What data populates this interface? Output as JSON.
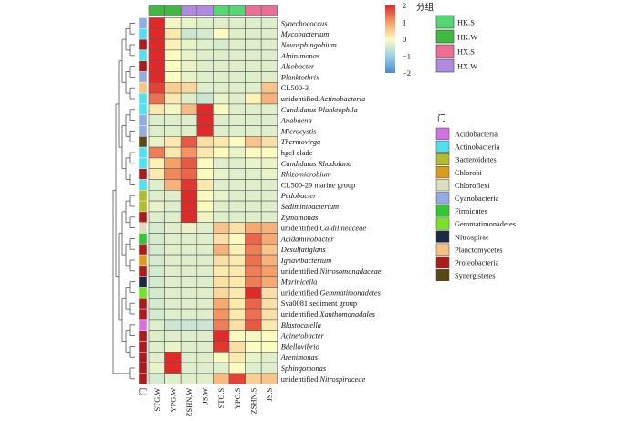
{
  "chart_data": {
    "type": "heatmap",
    "title": "",
    "columns": [
      "STG.W",
      "YPG.W",
      "ZSHN.W",
      "JS.W",
      "STG.S",
      "YPG.S",
      "ZSHN.S",
      "JS.S"
    ],
    "column_groups": [
      "HK.W",
      "HK.W",
      "HX.W",
      "HX.W",
      "HK.S",
      "HK.S",
      "HX.S",
      "HX.S"
    ],
    "group_legend": {
      "title": "分组",
      "items": [
        {
          "name": "HK.S",
          "color": "#53d873"
        },
        {
          "name": "HK.W",
          "color": "#3fba3f"
        },
        {
          "name": "HX.S",
          "color": "#ee6d95"
        },
        {
          "name": "HX.W",
          "color": "#b08ae2"
        }
      ]
    },
    "phylum_legend": {
      "title": "门",
      "items": [
        {
          "name": "Acidobacteria",
          "color": "#d072e3"
        },
        {
          "name": "Actinobacteria",
          "color": "#52e0ee"
        },
        {
          "name": "Bacteroidetes",
          "color": "#b1bd2a"
        },
        {
          "name": "Chlorobi",
          "color": "#db9c1b"
        },
        {
          "name": "Chloroflexi",
          "color": "#ddddbf"
        },
        {
          "name": "Cyanobacteria",
          "color": "#94abe3"
        },
        {
          "name": "Firmicutes",
          "color": "#33c733"
        },
        {
          "name": "Gemmatimonadetes",
          "color": "#77e326"
        },
        {
          "name": "Nitrospirae",
          "color": "#1c2944"
        },
        {
          "name": "Planctomycetes",
          "color": "#f6c280"
        },
        {
          "name": "Proteobacteria",
          "color": "#a81c1c"
        },
        {
          "name": "Synergistetes",
          "color": "#5a4712"
        }
      ]
    },
    "phylum_axis_label": "门",
    "color_scale": {
      "min": -2,
      "max": 2,
      "ticks": [
        2,
        1,
        0,
        -1,
        -2
      ],
      "colors": [
        "#4d8ad1",
        "#9ad2e8",
        "#fcfbc0",
        "#f5a068",
        "#e02a2a"
      ]
    },
    "rows": [
      {
        "pre": "",
        "it": "Synechococcus",
        "post": "",
        "phylum": "Cyanobacteria",
        "values": [
          2.2,
          -0.1,
          -0.2,
          -0.3,
          -0.3,
          -0.3,
          -0.3,
          -0.3
        ]
      },
      {
        "pre": "",
        "it": "Mycobacterium",
        "post": "",
        "phylum": "Actinobacteria",
        "values": [
          2.0,
          0.2,
          -0.5,
          -0.4,
          0.0,
          -0.3,
          -0.3,
          -0.3
        ]
      },
      {
        "pre": "",
        "it": "Novosphingobium",
        "post": "",
        "phylum": "Proteobacteria",
        "values": [
          2.0,
          0.1,
          -0.2,
          -0.3,
          -0.4,
          -0.3,
          -0.3,
          -0.3
        ]
      },
      {
        "pre": "",
        "it": "Alpinimonas",
        "post": "",
        "phylum": "Actinobacteria",
        "values": [
          2.1,
          0.0,
          -0.2,
          -0.3,
          -0.3,
          -0.3,
          -0.3,
          -0.3
        ]
      },
      {
        "pre": "",
        "it": "Alsobacter",
        "post": "",
        "phylum": "Proteobacteria",
        "values": [
          2.1,
          0.0,
          -0.2,
          -0.3,
          -0.3,
          -0.3,
          -0.3,
          -0.3
        ]
      },
      {
        "pre": "",
        "it": "Planktothrix",
        "post": "",
        "phylum": "Cyanobacteria",
        "values": [
          2.1,
          0.0,
          -0.2,
          -0.3,
          -0.3,
          -0.3,
          -0.3,
          -0.3
        ]
      },
      {
        "pre": "CL500-3",
        "it": "",
        "post": "",
        "phylum": "Planctomycetes",
        "values": [
          1.8,
          0.5,
          0.4,
          -0.3,
          -0.3,
          -0.3,
          -0.3,
          0.6
        ]
      },
      {
        "pre": "unidentified ",
        "it": "Actinobacteria",
        "post": "",
        "phylum": "Actinobacteria",
        "values": [
          1.4,
          0.2,
          -0.3,
          -0.5,
          -0.2,
          -0.3,
          0.1,
          0.8
        ]
      },
      {
        "pre": "",
        "it": "Candidatus Planktophila",
        "post": "",
        "phylum": "Actinobacteria",
        "values": [
          0.2,
          -0.1,
          0.7,
          2.0,
          0.0,
          -0.3,
          -0.3,
          -0.3
        ]
      },
      {
        "pre": "",
        "it": "Anabaena",
        "post": "",
        "phylum": "Cyanobacteria",
        "values": [
          -0.3,
          -0.3,
          -0.3,
          2.2,
          -0.3,
          -0.3,
          -0.3,
          -0.3
        ]
      },
      {
        "pre": "",
        "it": "Microcystis",
        "post": "",
        "phylum": "Cyanobacteria",
        "values": [
          -0.3,
          -0.3,
          -0.3,
          2.2,
          -0.3,
          -0.3,
          -0.3,
          -0.3
        ]
      },
      {
        "pre": "",
        "it": "Thermovirga",
        "post": "",
        "phylum": "Synergistetes",
        "values": [
          -0.2,
          0.2,
          1.6,
          0.3,
          0.2,
          0.0,
          0.6,
          0.3
        ]
      },
      {
        "pre": "hgcI clade",
        "it": "",
        "post": "",
        "phylum": "Actinobacteria",
        "values": [
          1.3,
          0.2,
          1.1,
          0.2,
          0.0,
          -0.2,
          0.0,
          0.0
        ]
      },
      {
        "pre": "",
        "it": "Candidatus Rhodoluna",
        "post": "",
        "phylum": "Actinobacteria",
        "values": [
          0.1,
          1.0,
          1.6,
          0.0,
          -0.3,
          -0.3,
          -0.2,
          -0.2
        ]
      },
      {
        "pre": "",
        "it": "Rhizomicrobium",
        "post": "",
        "phylum": "Proteobacteria",
        "values": [
          0.2,
          1.2,
          1.5,
          0.0,
          -0.2,
          -0.3,
          -0.3,
          -0.2
        ]
      },
      {
        "pre": "CL500-29 marine  group",
        "it": "",
        "post": "",
        "phylum": "Actinobacteria",
        "values": [
          -0.3,
          0.8,
          1.9,
          0.2,
          -0.3,
          -0.3,
          -0.3,
          -0.3
        ]
      },
      {
        "pre": "",
        "it": "Pedobacter",
        "post": "",
        "phylum": "Bacteroidetes",
        "values": [
          -0.3,
          -0.3,
          2.1,
          0.0,
          -0.2,
          -0.3,
          -0.3,
          -0.3
        ]
      },
      {
        "pre": "",
        "it": "Sediminibacterium",
        "post": "",
        "phylum": "Bacteroidetes",
        "values": [
          -0.2,
          -0.3,
          2.1,
          0.0,
          -0.3,
          -0.3,
          -0.3,
          -0.3
        ]
      },
      {
        "pre": "",
        "it": "Zymomonas",
        "post": "",
        "phylum": "Proteobacteria",
        "values": [
          -0.3,
          -0.3,
          2.2,
          -0.1,
          -0.3,
          -0.3,
          -0.3,
          -0.3
        ]
      },
      {
        "pre": "unidentified ",
        "it": "Caldilineaceae",
        "post": "",
        "phylum": "Chloroflexi",
        "values": [
          -0.4,
          -0.3,
          -0.2,
          -0.3,
          0.6,
          0.3,
          0.9,
          0.8
        ]
      },
      {
        "pre": "",
        "it": "Acidaminobacter",
        "post": "",
        "phylum": "Firmicutes",
        "values": [
          -0.4,
          -0.3,
          -0.3,
          -0.3,
          0.3,
          0.0,
          1.5,
          0.9
        ]
      },
      {
        "pre": "",
        "it": "Desulfatiglans",
        "post": "",
        "phylum": "Proteobacteria",
        "values": [
          -0.4,
          -0.3,
          -0.3,
          -0.3,
          0.8,
          0.1,
          1.3,
          0.6
        ]
      },
      {
        "pre": "",
        "it": "Ignavibacterium",
        "post": "",
        "phylum": "Chlorobi",
        "values": [
          -0.4,
          -0.3,
          -0.3,
          -0.3,
          0.3,
          0.2,
          1.4,
          0.8
        ]
      },
      {
        "pre": "unidentified ",
        "it": "Nitrosomonadaceae",
        "post": "",
        "phylum": "Proteobacteria",
        "values": [
          -0.4,
          -0.3,
          -0.3,
          -0.3,
          0.2,
          0.2,
          1.3,
          1.0
        ]
      },
      {
        "pre": "",
        "it": "Marinicella",
        "post": "",
        "phylum": "Nitrospirae",
        "values": [
          -0.4,
          -0.3,
          -0.3,
          -0.3,
          0.3,
          0.2,
          1.3,
          0.9
        ]
      },
      {
        "pre": "unidentified ",
        "it": "Gemmatimonadetes",
        "post": "",
        "phylum": "Gemmatimonadetes",
        "values": [
          -0.4,
          -0.3,
          -0.3,
          -0.3,
          0.4,
          0.2,
          2.0,
          0.3
        ]
      },
      {
        "pre": "Sva0081 sediment  group",
        "it": "",
        "post": "",
        "phylum": "Proteobacteria",
        "values": [
          -0.4,
          -0.3,
          -0.3,
          -0.3,
          0.9,
          0.2,
          1.5,
          0.3
        ]
      },
      {
        "pre": "unidentified ",
        "it": "Xanthomonadales",
        "post": "",
        "phylum": "Proteobacteria",
        "values": [
          -0.4,
          -0.3,
          -0.3,
          -0.3,
          1.1,
          0.2,
          1.4,
          0.3
        ]
      },
      {
        "pre": "",
        "it": "Blastocatella",
        "post": "",
        "phylum": "Acidobacteria",
        "values": [
          -0.3,
          -0.5,
          -0.5,
          -0.5,
          1.3,
          0.3,
          1.6,
          0.2
        ]
      },
      {
        "pre": "",
        "it": "Acinetobacter",
        "post": "",
        "phylum": "Proteobacteria",
        "values": [
          -0.3,
          -0.3,
          -0.3,
          -0.3,
          2.1,
          0.0,
          -0.1,
          0.0
        ]
      },
      {
        "pre": "",
        "it": "Bdellovibrio",
        "post": "",
        "phylum": "Proteobacteria",
        "values": [
          -0.3,
          -0.2,
          -0.3,
          -0.3,
          1.9,
          0.3,
          0.0,
          0.0
        ]
      },
      {
        "pre": "",
        "it": "Arenimonas",
        "post": "",
        "phylum": "Proteobacteria",
        "values": [
          -0.3,
          2.0,
          -0.3,
          -0.3,
          0.0,
          0.2,
          -0.2,
          -0.3
        ]
      },
      {
        "pre": "",
        "it": "Sphingomonas",
        "post": "",
        "phylum": "Proteobacteria",
        "values": [
          -0.2,
          2.2,
          -0.3,
          -0.3,
          -0.3,
          0.0,
          -0.3,
          -0.3
        ]
      },
      {
        "pre": "unidentified ",
        "it": "Nitrospiraceae",
        "post": "",
        "phylum": "Proteobacteria",
        "values": [
          -0.4,
          -0.3,
          -0.3,
          -0.3,
          0.7,
          1.8,
          0.5,
          0.6
        ]
      }
    ]
  }
}
